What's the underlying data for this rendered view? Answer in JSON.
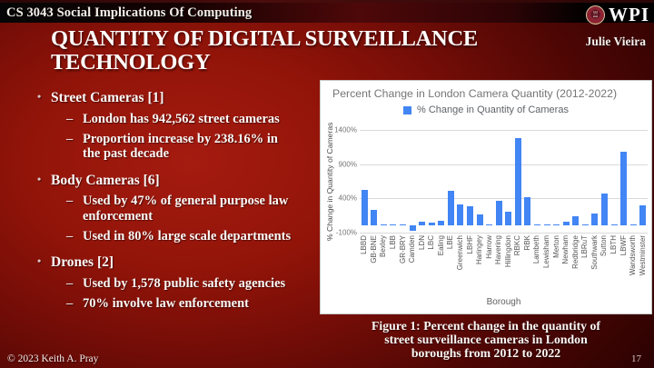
{
  "header": {
    "course_title": "CS 3043 Social Implications Of Computing",
    "brand": "WPI",
    "author": "Julie Vieira"
  },
  "slide": {
    "title": "QUANTITY OF DIGITAL SURVEILLANCE TECHNOLOGY"
  },
  "bullets": {
    "marker": "•",
    "sub_marker": "–",
    "groups": [
      {
        "label": "Street Cameras [1]",
        "subs": [
          "London has 942,562 street cameras",
          "Proportion increase by 238.16% in the past decade"
        ]
      },
      {
        "label": "Body Cameras [6]",
        "subs": [
          "Used by 47% of general purpose law enforcement",
          "Used in 80% large scale departments"
        ]
      },
      {
        "label": "Drones [2]",
        "subs": [
          "Used by 1,578 public safety agencies",
          "70% involve law enforcement"
        ]
      }
    ]
  },
  "chart_data": {
    "type": "bar",
    "title": "Percent Change in London Camera Quantity (2012-2022)",
    "legend": "% Change in Quantity of Cameras",
    "xlabel": "Borough",
    "ylabel": "% Change in Quantity of Cameras",
    "ylim": [
      -100,
      1400
    ],
    "yticks": [
      1400,
      900,
      400,
      -100
    ],
    "grid": true,
    "legend_position": "top",
    "bar_color": "#4285f4",
    "categories": [
      "LBBD",
      "GB-BNE",
      "Bexley",
      "LBB",
      "GR-BRY",
      "Camden",
      "LDN",
      "LBC",
      "Ealing",
      "LBE",
      "Greenwich",
      "LBHF",
      "Haringey",
      "Harrow",
      "Havering",
      "Hillingdon",
      "RBKC",
      "RBK",
      "Lambeth",
      "Lewisham",
      "Merton",
      "Newham",
      "Redbridge",
      "LBRuT",
      "Southwark",
      "Sutton",
      "LBTH",
      "LBWF",
      "Wandsworth",
      "Westminster"
    ],
    "values": [
      520,
      230,
      5,
      5,
      5,
      -70,
      65,
      40,
      70,
      510,
      305,
      285,
      165,
      10,
      360,
      210,
      1275,
      420,
      20,
      20,
      25,
      60,
      135,
      5,
      185,
      465,
      25,
      1080,
      5,
      295
    ]
  },
  "figure": {
    "caption_lines": [
      "Figure 1: Percent change in the quantity of",
      "street surveillance cameras in London",
      "boroughs from 2012 to 2022"
    ]
  },
  "footer": {
    "copyright": "© 2023 Keith A. Pray",
    "page_number": "17"
  }
}
